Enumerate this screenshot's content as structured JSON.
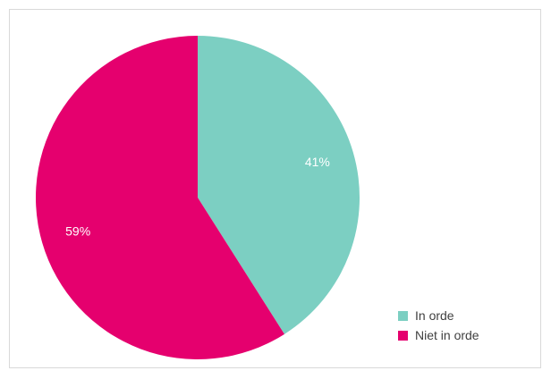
{
  "chart_data": {
    "type": "pie",
    "categories": [
      "In orde",
      "Niet in orde"
    ],
    "values": [
      41,
      59
    ],
    "data_labels": [
      "41%",
      "59%"
    ],
    "colors": [
      "#7ccfc2",
      "#e5006e"
    ],
    "start_angle_deg": 0,
    "direction": "clockwise",
    "legend_position": "bottom-right",
    "title": ""
  },
  "legend": {
    "items": [
      {
        "label": "In orde",
        "color": "#7ccfc2"
      },
      {
        "label": "Niet in orde",
        "color": "#e5006e"
      }
    ]
  }
}
